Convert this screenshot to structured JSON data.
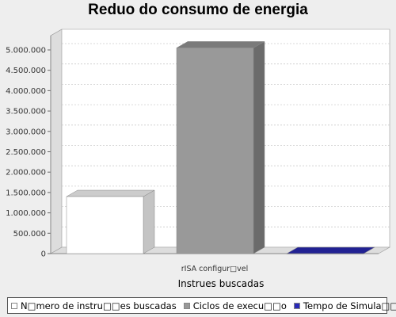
{
  "chart_data": {
    "type": "bar",
    "title": "Reduo do consumo de energia",
    "xlabel": "Instrues buscadas",
    "ylabel": "",
    "categories": [
      "rISA configur□vel"
    ],
    "series": [
      {
        "name": "N□mero de instru□□es buscadas",
        "values": [
          1400000
        ],
        "color": "#ffffff"
      },
      {
        "name": "Ciclos de execu□□o",
        "values": [
          5050000
        ],
        "color": "#999999"
      },
      {
        "name": "Tempo de Simula□□o",
        "values": [
          0
        ],
        "color": "#2a2ab8"
      }
    ],
    "ylim": [
      0,
      5350000
    ],
    "yticks": [
      0,
      500000,
      1000000,
      1500000,
      2000000,
      2500000,
      3000000,
      3500000,
      4000000,
      4500000,
      5000000
    ],
    "ytick_labels": [
      "0",
      "500.000",
      "1.000.000",
      "1.500.000",
      "2.000.000",
      "2.500.000",
      "3.000.000",
      "3.500.000",
      "4.000.000",
      "4.500.000",
      "5.000.000"
    ],
    "grid": true,
    "legend_position": "bottom",
    "render": "3d-bar"
  }
}
